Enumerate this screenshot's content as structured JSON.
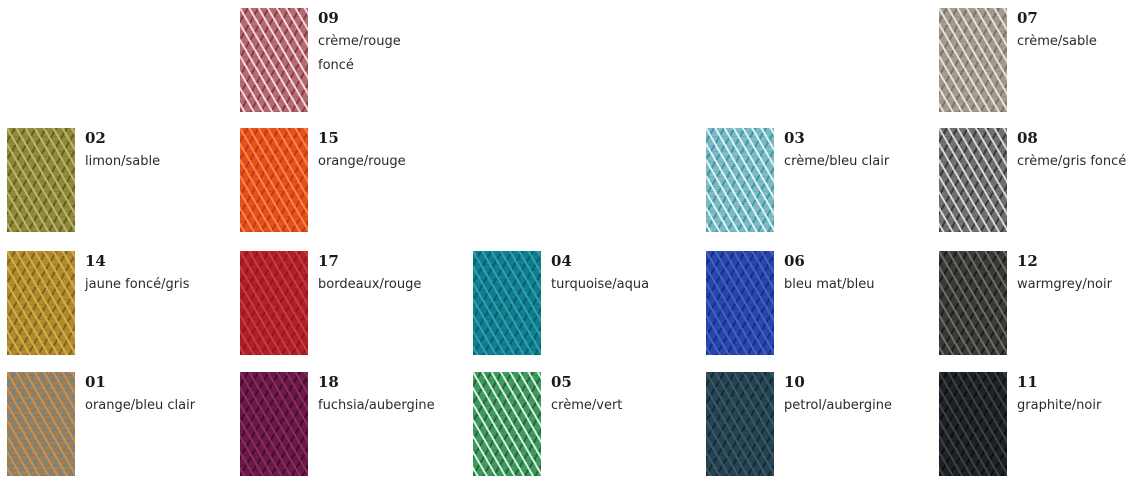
{
  "swatches": [
    {
      "code": "09",
      "name": "crème/rouge foncé",
      "colors": [
        "#b86a72",
        "#efd9d9",
        "#8e3a45"
      ]
    },
    {
      "code": "07",
      "name": "crème/sable",
      "colors": [
        "#a59c8f",
        "#e6e0d6",
        "#7c7468"
      ]
    },
    {
      "code": "02",
      "name": "limon/sable",
      "colors": [
        "#8f8a3c",
        "#c0b463",
        "#626023"
      ]
    },
    {
      "code": "15",
      "name": "orange/rouge",
      "colors": [
        "#e8511f",
        "#f58a3a",
        "#c8341a"
      ]
    },
    {
      "code": "03",
      "name": "crème/bleu clair",
      "colors": [
        "#7cbcc6",
        "#dff1f3",
        "#3d98a8"
      ]
    },
    {
      "code": "08",
      "name": "crème/gris foncé",
      "colors": [
        "#707070",
        "#d6d6d6",
        "#3a3a3a"
      ]
    },
    {
      "code": "14",
      "name": "jaune foncé/gris",
      "colors": [
        "#b28c2c",
        "#d4ae45",
        "#7d6426"
      ]
    },
    {
      "code": "17",
      "name": "bordeaux/rouge",
      "colors": [
        "#b4202a",
        "#cd3a3c",
        "#8e1720"
      ]
    },
    {
      "code": "04",
      "name": "turquoise/aqua",
      "colors": [
        "#127f90",
        "#2aa2b1",
        "#0a5f6c"
      ]
    },
    {
      "code": "06",
      "name": "bleu mat/bleu",
      "colors": [
        "#2b46a8",
        "#3a62d0",
        "#1b2d80"
      ]
    },
    {
      "code": "12",
      "name": "warmgrey/noir",
      "colors": [
        "#3b3b36",
        "#6e6d64",
        "#1c1c1a"
      ]
    },
    {
      "code": "01",
      "name": "orange/bleu clair",
      "colors": [
        "#9c8060",
        "#c8924c",
        "#6a8688"
      ]
    },
    {
      "code": "18",
      "name": "fuchsia/aubergine",
      "colors": [
        "#6a1a47",
        "#8c2b5f",
        "#3f0f2c"
      ]
    },
    {
      "code": "05",
      "name": "crème/vert",
      "colors": [
        "#3f9a5e",
        "#d8efd9",
        "#1d6a3c"
      ]
    },
    {
      "code": "10",
      "name": "petrol/aubergine",
      "colors": [
        "#274352",
        "#355a6a",
        "#1a2834"
      ]
    },
    {
      "code": "11",
      "name": "graphite/noir",
      "colors": [
        "#1c2226",
        "#3a4248",
        "#0d1012"
      ]
    }
  ]
}
